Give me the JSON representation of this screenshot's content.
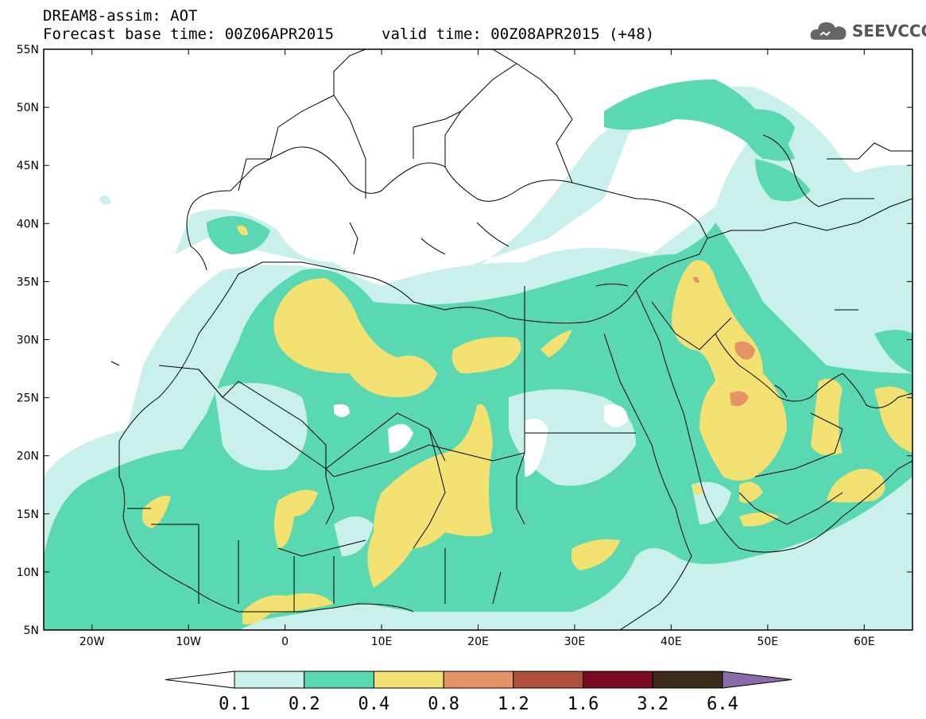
{
  "header": {
    "title": "DREAM8-assim: AOT",
    "base_time": "Forecast base time: 00Z06APR2015",
    "valid_time": "valid time: 00Z08APR2015 (+48)"
  },
  "logo": {
    "text": "SEEVCCC",
    "icon": "cloud-icon"
  },
  "map": {
    "lat_labels": [
      "55N",
      "50N",
      "45N",
      "40N",
      "35N",
      "30N",
      "25N",
      "20N",
      "15N",
      "10N",
      "5N"
    ],
    "lon_labels": [
      "20W",
      "10W",
      "0",
      "10E",
      "20E",
      "30E",
      "40E",
      "50E",
      "60E"
    ],
    "lon_range": [
      -25,
      65
    ],
    "lat_range": [
      5,
      55
    ]
  },
  "legend": {
    "labels": [
      "0.1",
      "0.2",
      "0.4",
      "0.8",
      "1.2",
      "1.6",
      "3.2",
      "6.4"
    ],
    "colors": [
      "#ffffff",
      "#c9f0ea",
      "#5ad8b2",
      "#f3e272",
      "#e8926a",
      "#b0503a",
      "#7a0a22",
      "#3b2a18",
      "#8a6aa8"
    ]
  }
}
